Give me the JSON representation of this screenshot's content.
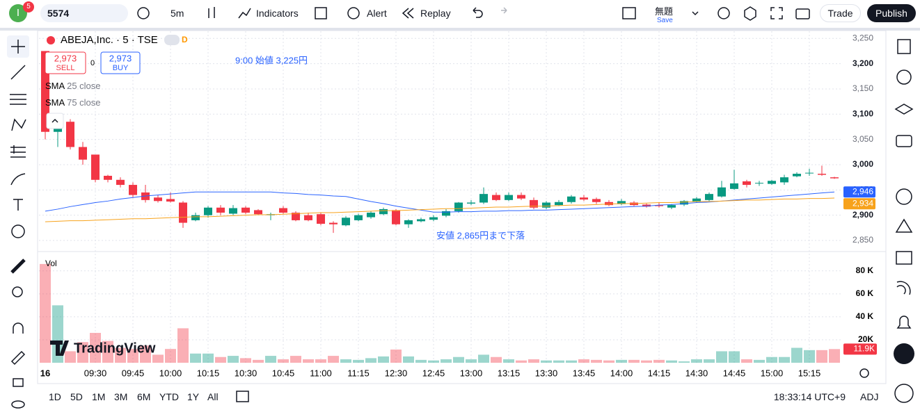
{
  "toolbar": {
    "avatar": "I",
    "badge": "5",
    "symbol": "5574",
    "interval": "5m",
    "indicators": "Indicators",
    "alert": "Alert",
    "replay": "Replay",
    "layout_name": "無題",
    "save": "Save",
    "trade": "Trade",
    "publish": "Publish"
  },
  "order_panel": {
    "sell_price": "2,973",
    "sell": "SELL",
    "spread": "0",
    "buy_price": "2,973",
    "buy": "BUY"
  },
  "session_badge": "D",
  "logo": "TradingView",
  "bottom_bar": {
    "ranges": [
      "1D",
      "5D",
      "1M",
      "3M",
      "6M",
      "YTD",
      "1Y",
      "All"
    ],
    "clock": "18:33:14 UTC+9",
    "adj": "ADJ"
  },
  "chart_data": {
    "type": "candlestick",
    "title": "ABEJA,Inc. · 5 · TSE",
    "categories": [
      "16",
      null,
      null,
      null,
      "09:30",
      null,
      null,
      "09:45",
      null,
      null,
      "10:00",
      null,
      null,
      "10:15",
      null,
      null,
      "10:30",
      null,
      null,
      "10:45",
      null,
      null,
      "11:00",
      null,
      null,
      "11:15",
      null,
      null,
      "12:30",
      null,
      null,
      "12:45",
      null,
      null,
      "13:00",
      null,
      null,
      "13:15",
      null,
      null,
      "13:30",
      null,
      null,
      "13:45",
      null,
      null,
      "14:00",
      null,
      null,
      "14:15",
      null,
      null,
      "14:30",
      null,
      null,
      "14:45",
      null,
      null,
      "15:00",
      null,
      null,
      "15:15",
      null,
      null
    ],
    "open": [
      3225,
      3065,
      3085,
      3035,
      3020,
      2978,
      2970,
      2960,
      2945,
      2935,
      2932,
      2925,
      2890,
      2900,
      2915,
      2903,
      2915,
      2910,
      2900,
      2914,
      2905,
      2900,
      2902,
      2885,
      2880,
      2890,
      2896,
      2902,
      2910,
      2882,
      2888,
      2891,
      2899,
      2908,
      2923,
      2925,
      2940,
      2930,
      2940,
      2930,
      2915,
      2920,
      2926,
      2935,
      2932,
      2926,
      2922,
      2925,
      2921,
      2920,
      2915,
      2921,
      2927,
      2930,
      2937,
      2952,
      2967,
      2963,
      2962,
      2965,
      2977,
      2983,
      2982,
      2975
    ],
    "high": [
      3225,
      3100,
      3090,
      3045,
      3020,
      2980,
      2975,
      2965,
      2960,
      2940,
      2945,
      2928,
      2905,
      2918,
      2920,
      2920,
      2918,
      2912,
      2905,
      2918,
      2908,
      2905,
      2905,
      2888,
      2898,
      2903,
      2908,
      2915,
      2912,
      2892,
      2895,
      2900,
      2912,
      2926,
      2930,
      2955,
      2945,
      2945,
      2945,
      2935,
      2928,
      2930,
      2940,
      2940,
      2935,
      2930,
      2932,
      2928,
      2923,
      2925,
      2922,
      2930,
      2936,
      2945,
      2968,
      2990,
      2970,
      2968,
      2970,
      2980,
      2985,
      2992,
      2998,
      2976
    ],
    "low": [
      3050,
      3035,
      3030,
      3000,
      2965,
      2965,
      2955,
      2935,
      2925,
      2925,
      2925,
      2875,
      2888,
      2895,
      2900,
      2900,
      2902,
      2900,
      2890,
      2903,
      2888,
      2888,
      2880,
      2865,
      2878,
      2888,
      2893,
      2900,
      2880,
      2875,
      2886,
      2888,
      2896,
      2905,
      2920,
      2922,
      2928,
      2928,
      2930,
      2912,
      2912,
      2918,
      2923,
      2928,
      2922,
      2918,
      2920,
      2918,
      2915,
      2915,
      2912,
      2918,
      2925,
      2928,
      2935,
      2950,
      2955,
      2958,
      2960,
      2960,
      2975,
      2978,
      2978,
      2972
    ],
    "close": [
      3065,
      3075,
      3035,
      3010,
      2970,
      2970,
      2960,
      2940,
      2930,
      2928,
      2927,
      2885,
      2900,
      2915,
      2905,
      2914,
      2905,
      2902,
      2902,
      2905,
      2890,
      2890,
      2883,
      2882,
      2895,
      2900,
      2905,
      2912,
      2882,
      2890,
      2892,
      2896,
      2908,
      2925,
      2925,
      2942,
      2930,
      2940,
      2933,
      2915,
      2925,
      2926,
      2937,
      2931,
      2926,
      2920,
      2928,
      2920,
      2917,
      2918,
      2920,
      2928,
      2933,
      2942,
      2955,
      2963,
      2960,
      2964,
      2968,
      2975,
      2982,
      2984,
      2980,
      2973
    ],
    "up_color": "#089981",
    "down_color": "#f23645",
    "ylim": [
      2828,
      3271
    ],
    "yticks": [
      {
        "value": 2850,
        "label": "2,850"
      },
      {
        "value": 2900,
        "label": "2,900"
      },
      {
        "value": 2950,
        "label": "2,950"
      },
      {
        "value": 3000,
        "label": "3,000"
      },
      {
        "value": 3050,
        "label": "3,050"
      },
      {
        "value": 3100,
        "label": "3,100"
      },
      {
        "value": 3150,
        "label": "3,150"
      },
      {
        "value": 3200,
        "label": "3,200"
      },
      {
        "value": 3250,
        "label": "3,250"
      }
    ],
    "grid": true,
    "series": [
      {
        "name": "SMA",
        "params": "25 close",
        "color": "#2962ff",
        "last_label": "2,946",
        "values": [
          2908,
          2912,
          2917,
          2921,
          2925,
          2928,
          2932,
          2935,
          2938,
          2940,
          2942,
          2944,
          2946,
          2946,
          2946,
          2946,
          2946,
          2946,
          2946,
          2944,
          2943,
          2941,
          2940,
          2938,
          2937,
          2932,
          2927,
          2923,
          2918,
          2914,
          2910,
          2906,
          2906,
          2907,
          2907,
          2908,
          2908,
          2909,
          2909,
          2910,
          2910,
          2911,
          2912,
          2913,
          2914,
          2915,
          2916,
          2917,
          2918,
          2920,
          2921,
          2923,
          2925,
          2926,
          2928,
          2930,
          2932,
          2934,
          2936,
          2938,
          2940,
          2942,
          2944,
          2946
        ]
      },
      {
        "name": "SMA",
        "params": "75 close",
        "color": "#f7a21b",
        "last_label": "2,934",
        "values": [
          2887,
          2888,
          2889,
          2889,
          2890,
          2891,
          2892,
          2893,
          2893,
          2894,
          2895,
          2896,
          2897,
          2897,
          2898,
          2899,
          2900,
          2901,
          2901,
          2902,
          2903,
          2904,
          2905,
          2905,
          2906,
          2907,
          2908,
          2909,
          2909,
          2910,
          2911,
          2912,
          2913,
          2913,
          2914,
          2915,
          2916,
          2916,
          2917,
          2918,
          2918,
          2919,
          2920,
          2920,
          2921,
          2922,
          2923,
          2923,
          2924,
          2925,
          2925,
          2926,
          2927,
          2927,
          2928,
          2929,
          2930,
          2930,
          2931,
          2932,
          2932,
          2933,
          2933,
          2934
        ]
      }
    ],
    "volume": {
      "name": "Vol",
      "last_label": "11.9K",
      "ylim": [
        0,
        95000
      ],
      "yticks": [
        {
          "value": 20000,
          "label": "20K"
        },
        {
          "value": 40000,
          "label": "40 K"
        },
        {
          "value": 60000,
          "label": "60 K"
        },
        {
          "value": 80000,
          "label": "80 K"
        }
      ],
      "values": [
        86000,
        50000,
        10000,
        18000,
        26000,
        19000,
        13000,
        12000,
        15000,
        7000,
        12000,
        30000,
        8000,
        8000,
        5000,
        6000,
        4000,
        2500,
        6000,
        3000,
        6000,
        3000,
        3000,
        6000,
        3000,
        2500,
        4000,
        5500,
        11500,
        5500,
        2500,
        2000,
        3000,
        5000,
        3000,
        7000,
        5000,
        3000,
        2000,
        3000,
        2000,
        2000,
        2000,
        3000,
        2500,
        2000,
        2500,
        2500,
        2000,
        2500,
        2000,
        1200,
        3000,
        3000,
        10000,
        10000,
        3000,
        2500,
        5000,
        5000,
        13000,
        11000,
        11000,
        11900
      ]
    },
    "annotations": [
      "9:00 始値 3,225円",
      "安値 2,865円まで下落"
    ]
  }
}
